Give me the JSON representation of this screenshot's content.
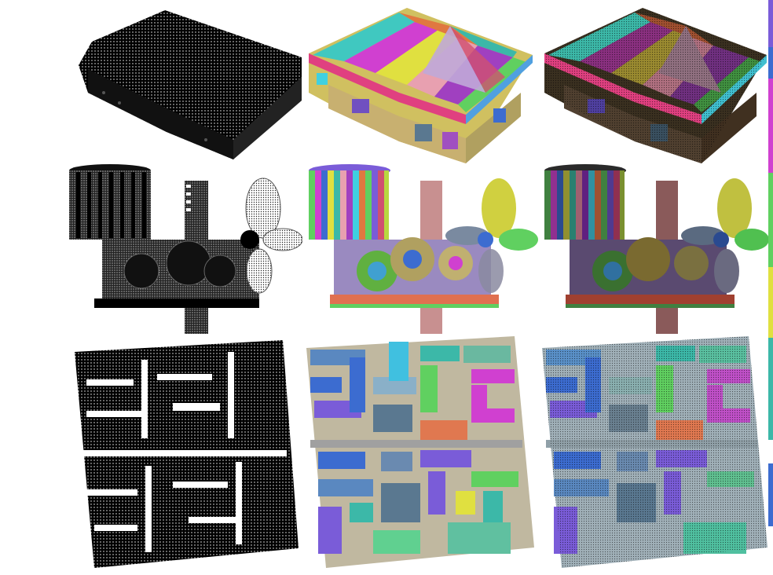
{
  "figure": {
    "rows": [
      {
        "subject": "building",
        "columns": [
          "point-cloud",
          "colored-segmentation",
          "colored-segmentation-with-points"
        ]
      },
      {
        "subject": "gear-mechanism",
        "columns": [
          "point-cloud",
          "colored-segmentation",
          "colored-segmentation-with-points"
        ]
      },
      {
        "subject": "lattice-block",
        "columns": [
          "point-cloud",
          "colored-segmentation",
          "colored-segmentation-with-points"
        ]
      }
    ],
    "palette": {
      "point": "#000000",
      "pink": "#e8a0b0",
      "magenta": "#d040d0",
      "green": "#60d060",
      "teal": "#3cb8a8",
      "blue": "#3c6cd0",
      "purple": "#7a5cd8",
      "yellow": "#e0e040",
      "orange": "#e07840",
      "slate": "#5a7890",
      "brown": "#a06040",
      "lime": "#b8d840",
      "cyan": "#40d0e0"
    }
  }
}
